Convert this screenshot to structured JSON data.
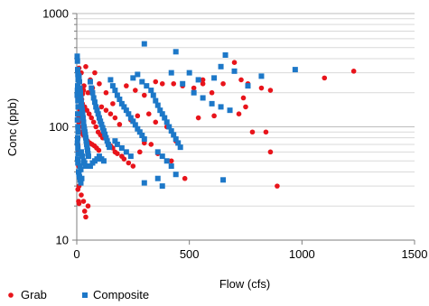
{
  "chart_data": {
    "type": "scatter",
    "title": "",
    "xlabel": "Flow (cfs)",
    "ylabel": "Conc (ppb)",
    "xlim": [
      0,
      1500
    ],
    "ylim": [
      10,
      1000
    ],
    "y_scale": "log",
    "x_ticks": [
      0,
      500,
      1000,
      1500
    ],
    "x_tick_labels": [
      "0",
      "500",
      "1000",
      "1500"
    ],
    "y_ticks": [
      10,
      100,
      1000
    ],
    "y_tick_labels": [
      "10",
      "100",
      "1000"
    ],
    "grid": "horizontal minor gridlines",
    "legend_position": "bottom-left",
    "series": [
      {
        "name": "Grab",
        "marker": "circle",
        "color": "#e8141b",
        "points": [
          [
            10,
            330
          ],
          [
            20,
            300
          ],
          [
            40,
            340
          ],
          [
            60,
            260
          ],
          [
            80,
            300
          ],
          [
            100,
            240
          ],
          [
            50,
            200
          ],
          [
            70,
            220
          ],
          [
            130,
            200
          ],
          [
            160,
            160
          ],
          [
            220,
            230
          ],
          [
            260,
            210
          ],
          [
            300,
            190
          ],
          [
            350,
            250
          ],
          [
            380,
            240
          ],
          [
            430,
            240
          ],
          [
            470,
            230
          ],
          [
            520,
            220
          ],
          [
            560,
            240
          ],
          [
            600,
            200
          ],
          [
            650,
            240
          ],
          [
            700,
            370
          ],
          [
            730,
            260
          ],
          [
            760,
            240
          ],
          [
            820,
            220
          ],
          [
            860,
            210
          ],
          [
            560,
            260
          ],
          [
            740,
            180
          ],
          [
            750,
            150
          ],
          [
            540,
            120
          ],
          [
            610,
            125
          ],
          [
            720,
            130
          ],
          [
            780,
            90
          ],
          [
            840,
            90
          ],
          [
            860,
            60
          ],
          [
            890,
            30
          ],
          [
            480,
            35
          ],
          [
            1100,
            270
          ],
          [
            1230,
            310
          ],
          [
            5,
            180
          ],
          [
            15,
            170
          ],
          [
            25,
            160
          ],
          [
            35,
            150
          ],
          [
            45,
            140
          ],
          [
            55,
            130
          ],
          [
            65,
            120
          ],
          [
            75,
            110
          ],
          [
            85,
            100
          ],
          [
            95,
            90
          ],
          [
            105,
            85
          ],
          [
            115,
            80
          ],
          [
            8,
            120
          ],
          [
            12,
            100
          ],
          [
            18,
            90
          ],
          [
            28,
            85
          ],
          [
            38,
            80
          ],
          [
            48,
            75
          ],
          [
            58,
            72
          ],
          [
            68,
            70
          ],
          [
            78,
            68
          ],
          [
            88,
            65
          ],
          [
            98,
            62
          ],
          [
            140,
            70
          ],
          [
            150,
            68
          ],
          [
            160,
            65
          ],
          [
            170,
            60
          ],
          [
            180,
            58
          ],
          [
            200,
            55
          ],
          [
            210,
            52
          ],
          [
            230,
            48
          ],
          [
            250,
            45
          ],
          [
            280,
            60
          ],
          [
            300,
            72
          ],
          [
            330,
            70
          ],
          [
            360,
            58
          ],
          [
            420,
            50
          ],
          [
            440,
            75
          ],
          [
            400,
            100
          ],
          [
            350,
            110
          ],
          [
            320,
            130
          ],
          [
            270,
            125
          ],
          [
            240,
            115
          ],
          [
            190,
            105
          ],
          [
            110,
            150
          ],
          [
            130,
            140
          ],
          [
            150,
            130
          ],
          [
            170,
            120
          ],
          [
            5,
            60
          ],
          [
            5,
            50
          ],
          [
            8,
            45
          ],
          [
            10,
            40
          ],
          [
            12,
            36
          ],
          [
            15,
            34
          ],
          [
            10,
            30
          ],
          [
            5,
            28
          ],
          [
            8,
            22
          ],
          [
            10,
            21
          ],
          [
            20,
            25
          ],
          [
            30,
            22
          ],
          [
            35,
            18
          ],
          [
            40,
            16
          ],
          [
            50,
            20
          ],
          [
            5,
            70
          ],
          [
            6,
            80
          ],
          [
            7,
            95
          ],
          [
            9,
            110
          ],
          [
            11,
            125
          ],
          [
            14,
            140
          ],
          [
            16,
            155
          ],
          [
            22,
            175
          ],
          [
            26,
            195
          ],
          [
            30,
            210
          ],
          [
            32,
            230
          ]
        ]
      },
      {
        "name": "Composite",
        "marker": "square",
        "color": "#1d78c8",
        "points": [
          [
            2,
            420
          ],
          [
            3,
            380
          ],
          [
            4,
            320
          ],
          [
            5,
            290
          ],
          [
            6,
            260
          ],
          [
            4,
            230
          ],
          [
            3,
            210
          ],
          [
            2,
            190
          ],
          [
            5,
            170
          ],
          [
            6,
            150
          ],
          [
            4,
            130
          ],
          [
            3,
            115
          ],
          [
            5,
            100
          ],
          [
            6,
            90
          ],
          [
            4,
            80
          ],
          [
            3,
            72
          ],
          [
            5,
            65
          ],
          [
            6,
            58
          ],
          [
            4,
            52
          ],
          [
            5,
            48
          ],
          [
            10,
            280
          ],
          [
            12,
            250
          ],
          [
            14,
            220
          ],
          [
            16,
            200
          ],
          [
            18,
            180
          ],
          [
            20,
            165
          ],
          [
            22,
            150
          ],
          [
            24,
            140
          ],
          [
            26,
            130
          ],
          [
            28,
            120
          ],
          [
            30,
            110
          ],
          [
            32,
            100
          ],
          [
            34,
            95
          ],
          [
            36,
            90
          ],
          [
            38,
            85
          ],
          [
            40,
            80
          ],
          [
            42,
            75
          ],
          [
            44,
            70
          ],
          [
            46,
            66
          ],
          [
            48,
            62
          ],
          [
            50,
            58
          ],
          [
            52,
            55
          ],
          [
            60,
            250
          ],
          [
            65,
            220
          ],
          [
            70,
            200
          ],
          [
            75,
            180
          ],
          [
            80,
            165
          ],
          [
            85,
            150
          ],
          [
            90,
            140
          ],
          [
            95,
            130
          ],
          [
            100,
            120
          ],
          [
            105,
            112
          ],
          [
            110,
            105
          ],
          [
            115,
            98
          ],
          [
            120,
            92
          ],
          [
            125,
            86
          ],
          [
            130,
            80
          ],
          [
            135,
            75
          ],
          [
            140,
            70
          ],
          [
            145,
            66
          ],
          [
            150,
            260
          ],
          [
            160,
            230
          ],
          [
            170,
            210
          ],
          [
            180,
            190
          ],
          [
            190,
            175
          ],
          [
            200,
            160
          ],
          [
            210,
            150
          ],
          [
            220,
            140
          ],
          [
            230,
            130
          ],
          [
            240,
            120
          ],
          [
            250,
            112
          ],
          [
            260,
            104
          ],
          [
            270,
            96
          ],
          [
            280,
            90
          ],
          [
            290,
            84
          ],
          [
            300,
            78
          ],
          [
            250,
            270
          ],
          [
            270,
            290
          ],
          [
            290,
            250
          ],
          [
            310,
            230
          ],
          [
            330,
            210
          ],
          [
            340,
            190
          ],
          [
            350,
            170
          ],
          [
            360,
            155
          ],
          [
            370,
            140
          ],
          [
            380,
            130
          ],
          [
            390,
            120
          ],
          [
            400,
            110
          ],
          [
            410,
            100
          ],
          [
            420,
            92
          ],
          [
            430,
            85
          ],
          [
            440,
            78
          ],
          [
            450,
            72
          ],
          [
            460,
            66
          ],
          [
            300,
            540
          ],
          [
            440,
            460
          ],
          [
            500,
            300
          ],
          [
            540,
            260
          ],
          [
            610,
            270
          ],
          [
            640,
            340
          ],
          [
            660,
            430
          ],
          [
            700,
            310
          ],
          [
            760,
            230
          ],
          [
            820,
            280
          ],
          [
            970,
            320
          ],
          [
            420,
            300
          ],
          [
            470,
            240
          ],
          [
            520,
            200
          ],
          [
            560,
            180
          ],
          [
            600,
            160
          ],
          [
            640,
            150
          ],
          [
            680,
            140
          ],
          [
            360,
            60
          ],
          [
            380,
            55
          ],
          [
            400,
            50
          ],
          [
            420,
            45
          ],
          [
            300,
            32
          ],
          [
            360,
            35
          ],
          [
            440,
            38
          ],
          [
            650,
            34
          ],
          [
            380,
            30
          ],
          [
            200,
            65
          ],
          [
            220,
            60
          ],
          [
            240,
            55
          ],
          [
            170,
            75
          ],
          [
            180,
            70
          ],
          [
            20,
            60
          ],
          [
            25,
            55
          ],
          [
            30,
            50
          ],
          [
            35,
            48
          ],
          [
            40,
            45
          ],
          [
            15,
            45
          ],
          [
            18,
            42
          ],
          [
            8,
            40
          ],
          [
            10,
            38
          ],
          [
            12,
            36
          ],
          [
            15,
            34
          ],
          [
            18,
            32
          ],
          [
            22,
            35
          ],
          [
            100,
            55
          ],
          [
            110,
            52
          ],
          [
            120,
            50
          ],
          [
            60,
            45
          ],
          [
            70,
            48
          ],
          [
            80,
            50
          ],
          [
            90,
            52
          ]
        ]
      }
    ]
  }
}
